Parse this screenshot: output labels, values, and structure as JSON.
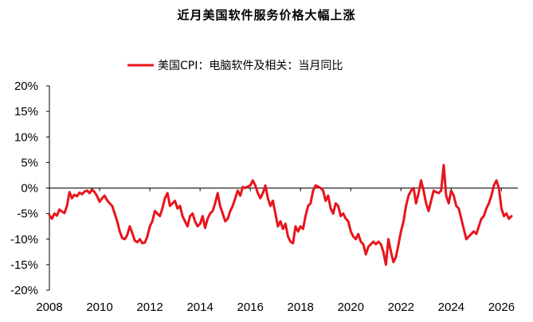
{
  "chart_data": {
    "type": "line",
    "title": "近月美国软件服务价格大幅上涨",
    "legend_position": "top",
    "xlabel": "",
    "ylabel": "",
    "xlim": [
      2008,
      2026.4
    ],
    "ylim": [
      -20,
      20
    ],
    "x_ticks": [
      "2008",
      "2010",
      "2012",
      "2014",
      "2016",
      "2018",
      "2020",
      "2022",
      "2024",
      "2026"
    ],
    "y_ticks": [
      "20%",
      "15%",
      "10%",
      "5%",
      "0%",
      "-5%",
      "-10%",
      "-15%",
      "-20%"
    ],
    "grid": false,
    "series": [
      {
        "name": "美国CPI：电脑软件及相关：当月同比",
        "color": "#e8141b",
        "unit": "%",
        "points": [
          [
            2008.0,
            -5.3
          ],
          [
            2008.1,
            -6.0
          ],
          [
            2008.2,
            -5.0
          ],
          [
            2008.3,
            -5.4
          ],
          [
            2008.4,
            -4.2
          ],
          [
            2008.5,
            -4.6
          ],
          [
            2008.6,
            -4.9
          ],
          [
            2008.7,
            -3.5
          ],
          [
            2008.8,
            -0.8
          ],
          [
            2008.9,
            -2.0
          ],
          [
            2009.0,
            -1.3
          ],
          [
            2009.1,
            -1.6
          ],
          [
            2009.2,
            -0.9
          ],
          [
            2009.3,
            -1.2
          ],
          [
            2009.4,
            -0.7
          ],
          [
            2009.5,
            -0.5
          ],
          [
            2009.6,
            -1.0
          ],
          [
            2009.7,
            -0.3
          ],
          [
            2009.8,
            -0.8
          ],
          [
            2009.9,
            -1.6
          ],
          [
            2010.0,
            -2.7
          ],
          [
            2010.1,
            -2.0
          ],
          [
            2010.2,
            -1.5
          ],
          [
            2010.3,
            -2.4
          ],
          [
            2010.4,
            -3.0
          ],
          [
            2010.5,
            -3.5
          ],
          [
            2010.6,
            -5.0
          ],
          [
            2010.7,
            -6.5
          ],
          [
            2010.8,
            -8.5
          ],
          [
            2010.9,
            -9.8
          ],
          [
            2011.0,
            -10.0
          ],
          [
            2011.1,
            -9.2
          ],
          [
            2011.2,
            -7.5
          ],
          [
            2011.3,
            -8.8
          ],
          [
            2011.4,
            -10.3
          ],
          [
            2011.5,
            -10.6
          ],
          [
            2011.6,
            -10.0
          ],
          [
            2011.7,
            -10.8
          ],
          [
            2011.8,
            -10.7
          ],
          [
            2011.9,
            -9.5
          ],
          [
            2012.0,
            -7.5
          ],
          [
            2012.1,
            -6.5
          ],
          [
            2012.2,
            -4.5
          ],
          [
            2012.3,
            -5.0
          ],
          [
            2012.4,
            -5.5
          ],
          [
            2012.5,
            -4.0
          ],
          [
            2012.6,
            -2.0
          ],
          [
            2012.7,
            -1.0
          ],
          [
            2012.8,
            -3.5
          ],
          [
            2012.9,
            -3.0
          ],
          [
            2013.0,
            -2.5
          ],
          [
            2013.1,
            -4.0
          ],
          [
            2013.2,
            -3.5
          ],
          [
            2013.3,
            -5.5
          ],
          [
            2013.4,
            -6.5
          ],
          [
            2013.5,
            -7.5
          ],
          [
            2013.6,
            -5.5
          ],
          [
            2013.7,
            -5.0
          ],
          [
            2013.8,
            -6.5
          ],
          [
            2013.9,
            -7.5
          ],
          [
            2014.0,
            -7.0
          ],
          [
            2014.1,
            -5.5
          ],
          [
            2014.2,
            -7.8
          ],
          [
            2014.3,
            -6.0
          ],
          [
            2014.4,
            -5.0
          ],
          [
            2014.5,
            -4.5
          ],
          [
            2014.6,
            -3.0
          ],
          [
            2014.7,
            -1.0
          ],
          [
            2014.8,
            -3.5
          ],
          [
            2014.9,
            -5.0
          ],
          [
            2015.0,
            -6.5
          ],
          [
            2015.1,
            -6.0
          ],
          [
            2015.2,
            -4.5
          ],
          [
            2015.3,
            -3.5
          ],
          [
            2015.4,
            -2.0
          ],
          [
            2015.5,
            -0.5
          ],
          [
            2015.6,
            -1.5
          ],
          [
            2015.7,
            0.2
          ],
          [
            2015.8,
            0.0
          ],
          [
            2015.9,
            0.3
          ],
          [
            2016.0,
            0.5
          ],
          [
            2016.1,
            1.5
          ],
          [
            2016.2,
            0.5
          ],
          [
            2016.3,
            -1.0
          ],
          [
            2016.4,
            -2.0
          ],
          [
            2016.5,
            -1.0
          ],
          [
            2016.6,
            0.5
          ],
          [
            2016.7,
            -2.0
          ],
          [
            2016.8,
            -3.5
          ],
          [
            2016.9,
            -2.5
          ],
          [
            2017.0,
            -5.0
          ],
          [
            2017.1,
            -7.5
          ],
          [
            2017.2,
            -6.5
          ],
          [
            2017.3,
            -8.0
          ],
          [
            2017.4,
            -7.0
          ],
          [
            2017.5,
            -9.5
          ],
          [
            2017.6,
            -10.5
          ],
          [
            2017.7,
            -10.8
          ],
          [
            2017.8,
            -7.5
          ],
          [
            2017.9,
            -8.5
          ],
          [
            2018.0,
            -7.5
          ],
          [
            2018.1,
            -8.0
          ],
          [
            2018.2,
            -5.5
          ],
          [
            2018.3,
            -3.5
          ],
          [
            2018.4,
            -3.0
          ],
          [
            2018.5,
            -0.5
          ],
          [
            2018.6,
            0.5
          ],
          [
            2018.7,
            0.3
          ],
          [
            2018.8,
            0.0
          ],
          [
            2018.9,
            -0.5
          ],
          [
            2019.0,
            -2.5
          ],
          [
            2019.1,
            -1.5
          ],
          [
            2019.2,
            -4.0
          ],
          [
            2019.3,
            -5.0
          ],
          [
            2019.4,
            -3.0
          ],
          [
            2019.5,
            -3.5
          ],
          [
            2019.6,
            -5.5
          ],
          [
            2019.7,
            -5.0
          ],
          [
            2019.8,
            -6.0
          ],
          [
            2019.9,
            -6.5
          ],
          [
            2020.0,
            -8.5
          ],
          [
            2020.1,
            -9.5
          ],
          [
            2020.2,
            -10.0
          ],
          [
            2020.3,
            -9.0
          ],
          [
            2020.4,
            -10.5
          ],
          [
            2020.5,
            -11.0
          ],
          [
            2020.6,
            -13.0
          ],
          [
            2020.7,
            -11.5
          ],
          [
            2020.8,
            -11.0
          ],
          [
            2020.9,
            -10.5
          ],
          [
            2021.0,
            -11.0
          ],
          [
            2021.1,
            -10.5
          ],
          [
            2021.2,
            -11.0
          ],
          [
            2021.3,
            -12.5
          ],
          [
            2021.4,
            -15.0
          ],
          [
            2021.5,
            -10.0
          ],
          [
            2021.6,
            -12.5
          ],
          [
            2021.7,
            -14.5
          ],
          [
            2021.8,
            -13.5
          ],
          [
            2021.9,
            -11.0
          ],
          [
            2022.0,
            -8.5
          ],
          [
            2022.1,
            -6.5
          ],
          [
            2022.2,
            -3.5
          ],
          [
            2022.3,
            -1.5
          ],
          [
            2022.4,
            -0.5
          ],
          [
            2022.5,
            0.0
          ],
          [
            2022.6,
            -3.0
          ],
          [
            2022.7,
            -1.0
          ],
          [
            2022.8,
            1.5
          ],
          [
            2022.9,
            -0.5
          ],
          [
            2023.0,
            -3.0
          ],
          [
            2023.1,
            -4.5
          ],
          [
            2023.2,
            -2.5
          ],
          [
            2023.3,
            -0.5
          ],
          [
            2023.4,
            -0.8
          ],
          [
            2023.5,
            -1.0
          ],
          [
            2023.6,
            -0.5
          ],
          [
            2023.7,
            4.5
          ],
          [
            2023.8,
            -1.5
          ],
          [
            2023.9,
            -3.0
          ],
          [
            2024.0,
            -0.5
          ],
          [
            2024.1,
            -1.5
          ],
          [
            2024.2,
            -3.5
          ],
          [
            2024.3,
            -4.0
          ],
          [
            2024.4,
            -6.0
          ],
          [
            2024.5,
            -8.0
          ],
          [
            2024.6,
            -10.0
          ],
          [
            2024.7,
            -9.5
          ],
          [
            2024.8,
            -9.0
          ],
          [
            2024.9,
            -8.5
          ],
          [
            2025.0,
            -9.0
          ],
          [
            2025.1,
            -7.5
          ],
          [
            2025.2,
            -6.0
          ],
          [
            2025.3,
            -5.5
          ],
          [
            2025.4,
            -4.0
          ],
          [
            2025.5,
            -3.0
          ],
          [
            2025.6,
            -1.5
          ],
          [
            2025.7,
            0.5
          ],
          [
            2025.8,
            1.5
          ],
          [
            2025.9,
            0.0
          ],
          [
            2026.0,
            -4.0
          ],
          [
            2026.1,
            -5.5
          ],
          [
            2026.2,
            -5.0
          ],
          [
            2026.3,
            -6.0
          ],
          [
            2026.4,
            -5.5
          ]
        ]
      }
    ]
  }
}
